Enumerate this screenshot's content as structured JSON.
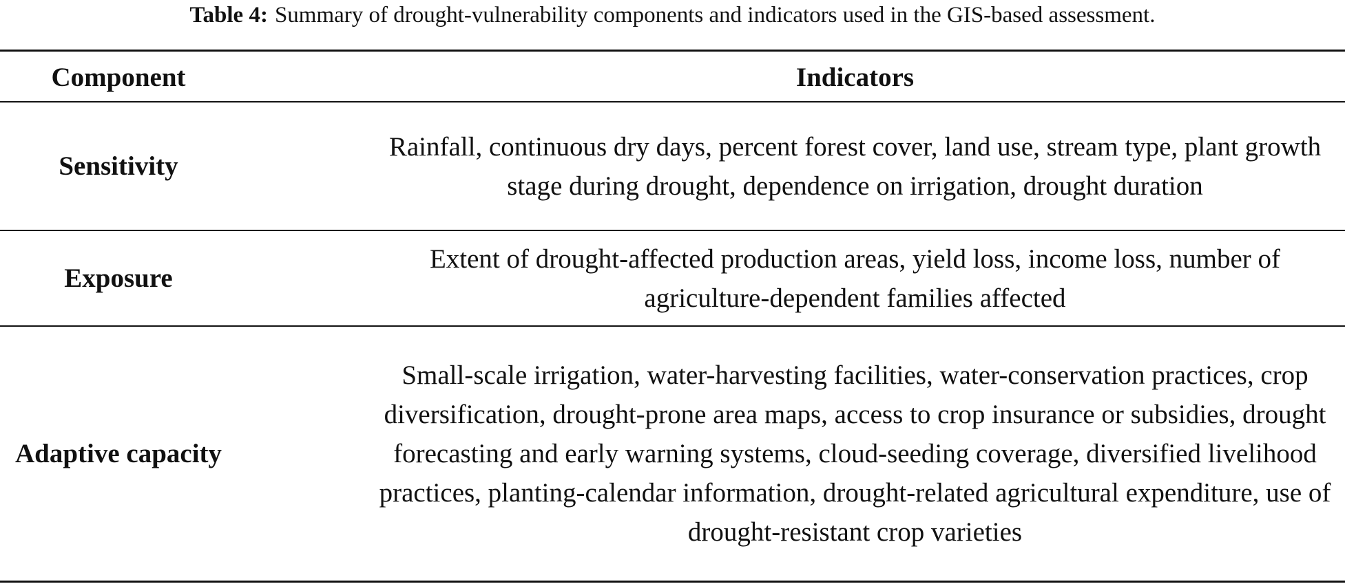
{
  "caption": {
    "label": "Table 4:",
    "text": "Summary of drought-vulnerability components and indicators used in the GIS-based assessment."
  },
  "table": {
    "headers": [
      "Component",
      "Indicators"
    ],
    "rows": [
      {
        "component": "Sensitivity",
        "indicators": "Rainfall, continuous dry days, percent forest cover, land use, stream type, plant growth stage during drought, dependence on irrigation, drought duration"
      },
      {
        "component": "Exposure",
        "indicators": "Extent of drought-affected production areas, yield loss, income loss, number of agriculture-dependent families affected"
      },
      {
        "component": "Adaptive capacity",
        "indicators": "Small-scale irrigation, water-harvesting facilities, water-conservation practices, crop diversification, drought-prone area maps, access to crop insurance or subsidies, drought forecasting and early warning systems, cloud-seeding coverage, diversified livelihood practices, planting-calendar information, drought-related agricultural expenditure, use of drought-resistant crop varieties"
      }
    ]
  }
}
